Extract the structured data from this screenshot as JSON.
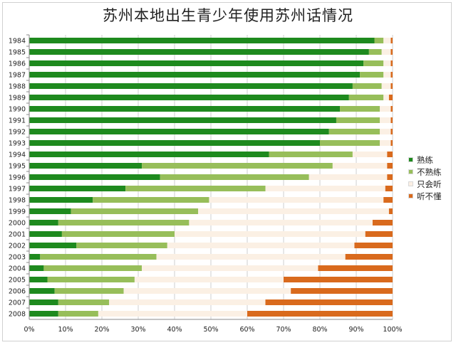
{
  "chart_data": {
    "type": "bar",
    "orientation": "horizontal",
    "stacked": true,
    "percent_stacked": true,
    "title": "苏州本地出生青少年使用苏州话情况",
    "xlabel": "",
    "ylabel": "",
    "xlim": [
      0,
      100
    ],
    "x_ticks": [
      "0%",
      "10%",
      "20%",
      "30%",
      "40%",
      "50%",
      "60%",
      "70%",
      "80%",
      "90%",
      "100%"
    ],
    "grid": true,
    "legend_position": "right",
    "categories": [
      "1984",
      "1985",
      "1986",
      "1987",
      "1988",
      "1989",
      "1990",
      "1991",
      "1992",
      "1993",
      "1994",
      "1995",
      "1996",
      "1997",
      "1998",
      "1999",
      "2000",
      "2001",
      "2002",
      "2003",
      "2004",
      "2005",
      "2006",
      "2007",
      "2008"
    ],
    "series": [
      {
        "name": "熟练",
        "color": "#1e8a1e",
        "values": [
          95,
          93.5,
          92,
          91,
          89,
          88,
          85.5,
          84.5,
          82.5,
          80,
          66,
          31,
          36,
          26.5,
          17.5,
          11.5,
          8,
          9,
          13,
          3,
          4,
          5,
          7,
          8,
          8
        ]
      },
      {
        "name": "不熟练",
        "color": "#97be5a",
        "values": [
          2.5,
          3.5,
          5.5,
          6.5,
          8,
          9.5,
          11,
          12,
          14,
          16.5,
          23,
          52.5,
          41,
          38.5,
          32,
          35,
          36,
          31,
          25,
          32,
          27,
          24,
          19,
          14,
          11
        ]
      },
      {
        "name": "只会听",
        "color": "#fbf0e4",
        "values": [
          2,
          2.5,
          2,
          2,
          2.5,
          1.5,
          3,
          3,
          3,
          3,
          9.5,
          15,
          21.5,
          33,
          48,
          52.5,
          50.5,
          52.5,
          51.5,
          52,
          48.5,
          41,
          46,
          43,
          41
        ]
      },
      {
        "name": "听不懂",
        "color": "#d96a1d",
        "values": [
          0.5,
          0.5,
          0.5,
          0.5,
          0.5,
          1,
          0.5,
          0.5,
          0.5,
          0.5,
          1.5,
          1.5,
          1.5,
          2,
          2.5,
          1,
          5.5,
          7.5,
          10.5,
          13,
          20.5,
          30,
          28,
          35,
          40
        ]
      }
    ]
  }
}
